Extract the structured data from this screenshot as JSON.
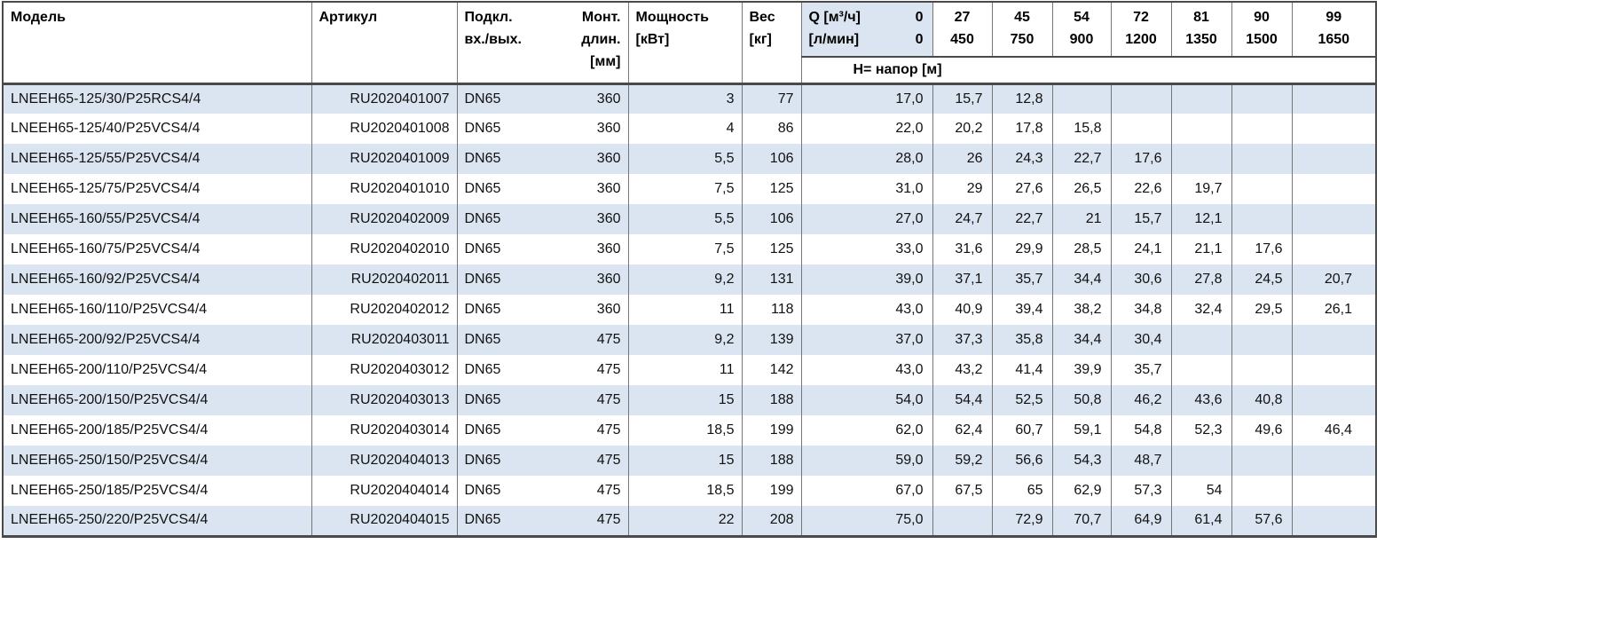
{
  "colors": {
    "stripe": "#dbe5f1",
    "frame": "#4a4a4a",
    "grid": "#767676",
    "background": "#ffffff"
  },
  "header": {
    "model": "Модель",
    "article": "Артикул",
    "connection_l1": "Подкл.",
    "connection_l2": "вх./вых.",
    "mount_l1": "Монт.",
    "mount_l2": "длин.",
    "mount_l3": "[мм]",
    "power_l1": "Мощность",
    "power_l2": "[кВт]",
    "weight_l1": "Вес",
    "weight_l2": "[кг]",
    "q_row1_label": "Q [м³/ч]",
    "q_row1_zero": "0",
    "q_row2_label": "[л/мин]",
    "q_row2_zero": "0",
    "head_row_label": "Н= напор [м]",
    "q_points": [
      {
        "m3h": "27",
        "lmin": "450"
      },
      {
        "m3h": "45",
        "lmin": "750"
      },
      {
        "m3h": "54",
        "lmin": "900"
      },
      {
        "m3h": "72",
        "lmin": "1200"
      },
      {
        "m3h": "81",
        "lmin": "1350"
      },
      {
        "m3h": "90",
        "lmin": "1500"
      },
      {
        "m3h": "99",
        "lmin": "1650"
      }
    ]
  },
  "rows": [
    {
      "model": "LNEEH65-125/30/P25RCS4/4",
      "article": "RU2020401007",
      "connection": "DN65",
      "mount": "360",
      "power": "3",
      "weight": "77",
      "heads": [
        "17,0",
        "15,7",
        "12,8",
        "",
        "",
        "",
        "",
        ""
      ]
    },
    {
      "model": "LNEEH65-125/40/P25VCS4/4",
      "article": "RU2020401008",
      "connection": "DN65",
      "mount": "360",
      "power": "4",
      "weight": "86",
      "heads": [
        "22,0",
        "20,2",
        "17,8",
        "15,8",
        "",
        "",
        "",
        ""
      ]
    },
    {
      "model": "LNEEH65-125/55/P25VCS4/4",
      "article": "RU2020401009",
      "connection": "DN65",
      "mount": "360",
      "power": "5,5",
      "weight": "106",
      "heads": [
        "28,0",
        "26",
        "24,3",
        "22,7",
        "17,6",
        "",
        "",
        ""
      ]
    },
    {
      "model": "LNEEH65-125/75/P25VCS4/4",
      "article": "RU2020401010",
      "connection": "DN65",
      "mount": "360",
      "power": "7,5",
      "weight": "125",
      "heads": [
        "31,0",
        "29",
        "27,6",
        "26,5",
        "22,6",
        "19,7",
        "",
        ""
      ]
    },
    {
      "model": "LNEEH65-160/55/P25VCS4/4",
      "article": "RU2020402009",
      "connection": "DN65",
      "mount": "360",
      "power": "5,5",
      "weight": "106",
      "heads": [
        "27,0",
        "24,7",
        "22,7",
        "21",
        "15,7",
        "12,1",
        "",
        ""
      ]
    },
    {
      "model": "LNEEH65-160/75/P25VCS4/4",
      "article": "RU2020402010",
      "connection": "DN65",
      "mount": "360",
      "power": "7,5",
      "weight": "125",
      "heads": [
        "33,0",
        "31,6",
        "29,9",
        "28,5",
        "24,1",
        "21,1",
        "17,6",
        ""
      ]
    },
    {
      "model": "LNEEH65-160/92/P25VCS4/4",
      "article": "RU2020402011",
      "connection": "DN65",
      "mount": "360",
      "power": "9,2",
      "weight": "131",
      "heads": [
        "39,0",
        "37,1",
        "35,7",
        "34,4",
        "30,6",
        "27,8",
        "24,5",
        "20,7"
      ]
    },
    {
      "model": "LNEEH65-160/110/P25VCS4/4",
      "article": "RU2020402012",
      "connection": "DN65",
      "mount": "360",
      "power": "11",
      "weight": "118",
      "heads": [
        "43,0",
        "40,9",
        "39,4",
        "38,2",
        "34,8",
        "32,4",
        "29,5",
        "26,1"
      ]
    },
    {
      "model": "LNEEH65-200/92/P25VCS4/4",
      "article": "RU2020403011",
      "connection": "DN65",
      "mount": "475",
      "power": "9,2",
      "weight": "139",
      "heads": [
        "37,0",
        "37,3",
        "35,8",
        "34,4",
        "30,4",
        "",
        "",
        ""
      ]
    },
    {
      "model": "LNEEH65-200/110/P25VCS4/4",
      "article": "RU2020403012",
      "connection": "DN65",
      "mount": "475",
      "power": "11",
      "weight": "142",
      "heads": [
        "43,0",
        "43,2",
        "41,4",
        "39,9",
        "35,7",
        "",
        "",
        ""
      ]
    },
    {
      "model": "LNEEH65-200/150/P25VCS4/4",
      "article": "RU2020403013",
      "connection": "DN65",
      "mount": "475",
      "power": "15",
      "weight": "188",
      "heads": [
        "54,0",
        "54,4",
        "52,5",
        "50,8",
        "46,2",
        "43,6",
        "40,8",
        ""
      ]
    },
    {
      "model": "LNEEH65-200/185/P25VCS4/4",
      "article": "RU2020403014",
      "connection": "DN65",
      "mount": "475",
      "power": "18,5",
      "weight": "199",
      "heads": [
        "62,0",
        "62,4",
        "60,7",
        "59,1",
        "54,8",
        "52,3",
        "49,6",
        "46,4"
      ]
    },
    {
      "model": "LNEEH65-250/150/P25VCS4/4",
      "article": "RU2020404013",
      "connection": "DN65",
      "mount": "475",
      "power": "15",
      "weight": "188",
      "heads": [
        "59,0",
        "59,2",
        "56,6",
        "54,3",
        "48,7",
        "",
        "",
        ""
      ]
    },
    {
      "model": "LNEEH65-250/185/P25VCS4/4",
      "article": "RU2020404014",
      "connection": "DN65",
      "mount": "475",
      "power": "18,5",
      "weight": "199",
      "heads": [
        "67,0",
        "67,5",
        "65",
        "62,9",
        "57,3",
        "54",
        "",
        ""
      ]
    },
    {
      "model": "LNEEH65-250/220/P25VCS4/4",
      "article": "RU2020404015",
      "connection": "DN65",
      "mount": "475",
      "power": "22",
      "weight": "208",
      "heads": [
        "75,0",
        "",
        "72,9",
        "70,7",
        "64,9",
        "61,4",
        "57,6",
        ""
      ]
    }
  ]
}
